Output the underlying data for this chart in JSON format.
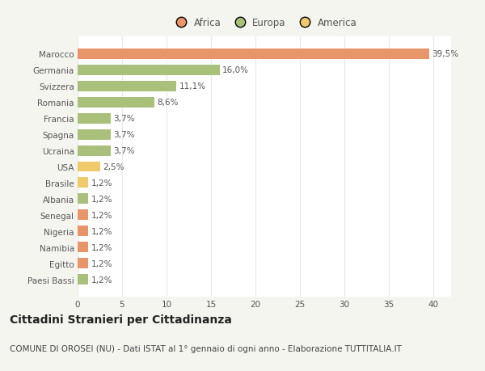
{
  "categories": [
    "Paesi Bassi",
    "Egitto",
    "Namibia",
    "Nigeria",
    "Senegal",
    "Albania",
    "Brasile",
    "USA",
    "Ucraina",
    "Spagna",
    "Francia",
    "Romania",
    "Svizzera",
    "Germania",
    "Marocco"
  ],
  "values": [
    1.2,
    1.2,
    1.2,
    1.2,
    1.2,
    1.2,
    1.2,
    2.5,
    3.7,
    3.7,
    3.7,
    8.6,
    11.1,
    16.0,
    39.5
  ],
  "labels": [
    "1,2%",
    "1,2%",
    "1,2%",
    "1,2%",
    "1,2%",
    "1,2%",
    "1,2%",
    "2,5%",
    "3,7%",
    "3,7%",
    "3,7%",
    "8,6%",
    "11,1%",
    "16,0%",
    "39,5%"
  ],
  "colors": [
    "#a8c07a",
    "#e8956a",
    "#e8956a",
    "#e8956a",
    "#e8956a",
    "#a8c07a",
    "#f0c96a",
    "#f0c96a",
    "#a8c07a",
    "#a8c07a",
    "#a8c07a",
    "#a8c07a",
    "#a8c07a",
    "#a8c07a",
    "#e8956a"
  ],
  "legend_labels": [
    "Africa",
    "Europa",
    "America"
  ],
  "legend_colors": [
    "#e8956a",
    "#a8c07a",
    "#f0c96a"
  ],
  "title": "Cittadini Stranieri per Cittadinanza",
  "subtitle": "COMUNE DI OROSEI (NU) - Dati ISTAT al 1° gennaio di ogni anno - Elaborazione TUTTITALIA.IT",
  "xlim": [
    0,
    42
  ],
  "xticks": [
    0,
    5,
    10,
    15,
    20,
    25,
    30,
    35,
    40
  ],
  "fig_bg_color": "#f5f5f0",
  "plot_bg_color": "#ffffff",
  "grid_color": "#e8e8e8",
  "title_fontsize": 10,
  "subtitle_fontsize": 7.5,
  "label_fontsize": 7.5,
  "tick_fontsize": 7.5,
  "legend_fontsize": 8.5
}
